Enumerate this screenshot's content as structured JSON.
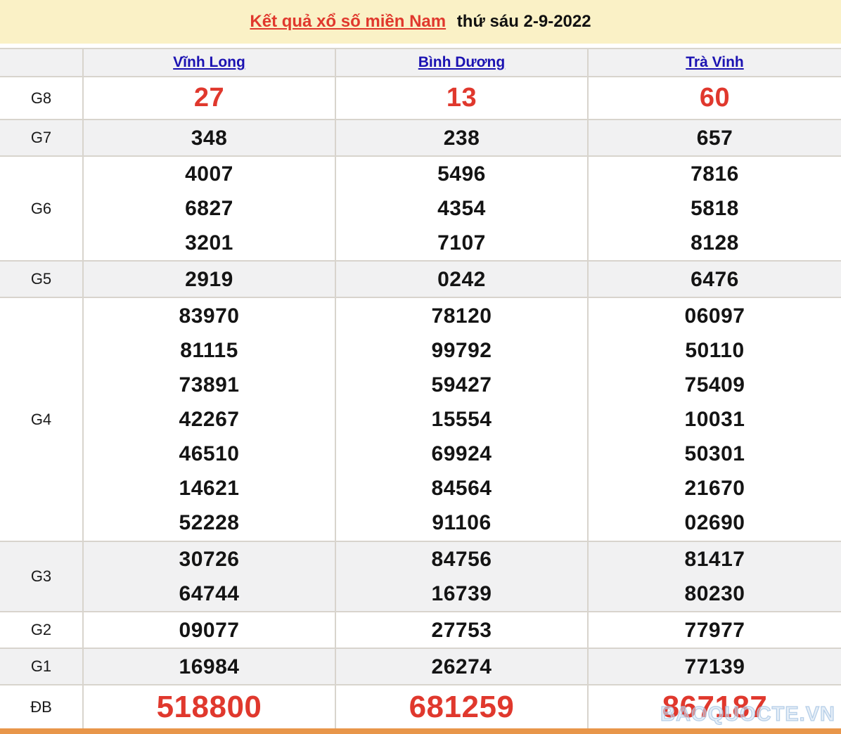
{
  "title": {
    "link_text": "Kết quả xổ số miền Nam",
    "suffix": "thứ sáu 2-9-2022"
  },
  "columns": [
    "Vĩnh Long",
    "Bình Dương",
    "Trà Vinh"
  ],
  "rows": [
    {
      "label": "G8",
      "values": [
        [
          "27"
        ],
        [
          "13"
        ],
        [
          "60"
        ]
      ]
    },
    {
      "label": "G7",
      "values": [
        [
          "348"
        ],
        [
          "238"
        ],
        [
          "657"
        ]
      ]
    },
    {
      "label": "G6",
      "values": [
        [
          "4007",
          "6827",
          "3201"
        ],
        [
          "5496",
          "4354",
          "7107"
        ],
        [
          "7816",
          "5818",
          "8128"
        ]
      ]
    },
    {
      "label": "G5",
      "values": [
        [
          "2919"
        ],
        [
          "0242"
        ],
        [
          "6476"
        ]
      ]
    },
    {
      "label": "G4",
      "values": [
        [
          "83970",
          "81115",
          "73891",
          "42267",
          "46510",
          "14621",
          "52228"
        ],
        [
          "78120",
          "99792",
          "59427",
          "15554",
          "69924",
          "84564",
          "91106"
        ],
        [
          "06097",
          "50110",
          "75409",
          "10031",
          "50301",
          "21670",
          "02690"
        ]
      ]
    },
    {
      "label": "G3",
      "values": [
        [
          "30726",
          "64744"
        ],
        [
          "84756",
          "16739"
        ],
        [
          "81417",
          "80230"
        ]
      ]
    },
    {
      "label": "G2",
      "values": [
        [
          "09077"
        ],
        [
          "27753"
        ],
        [
          "77977"
        ]
      ]
    },
    {
      "label": "G1",
      "values": [
        [
          "16984"
        ],
        [
          "26274"
        ],
        [
          "77139"
        ]
      ]
    },
    {
      "label": "ĐB",
      "values": [
        [
          "518800"
        ],
        [
          "681259"
        ],
        [
          "867187"
        ]
      ]
    }
  ],
  "watermark": "BAOQUOCTE.VN",
  "colors": {
    "title_bar_bg": "#faf1c6",
    "highlight_red": "#e0382d",
    "link_blue": "#1b12b2",
    "stripe_gray": "#f1f1f2",
    "border_gray": "#d8d4cd",
    "bottom_bar_orange": "#e8964a"
  }
}
